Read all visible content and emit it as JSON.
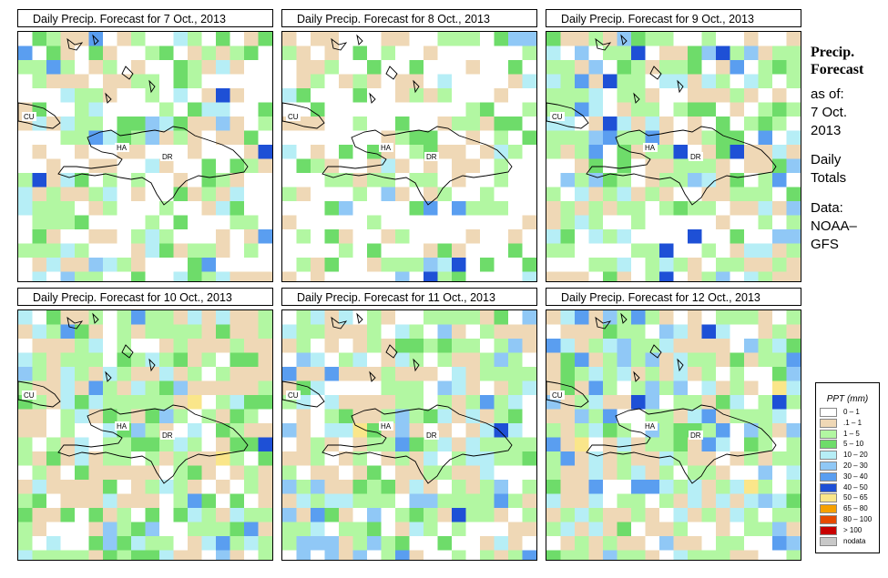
{
  "panels": [
    {
      "title": "Daily Precip. Forecast for  7 Oct., 2013",
      "seed": 7,
      "fill": 0.55,
      "wet": 0.1
    },
    {
      "title": "Daily Precip. Forecast for  8 Oct., 2013",
      "seed": 8,
      "fill": 0.5,
      "wet": 0.08
    },
    {
      "title": "Daily Precip. Forecast for  9 Oct., 2013",
      "seed": 9,
      "fill": 0.75,
      "wet": 0.18
    },
    {
      "title": "Daily Precip. Forecast for  10 Oct., 2013",
      "seed": 10,
      "fill": 0.82,
      "wet": 0.16
    },
    {
      "title": "Daily Precip. Forecast for  11 Oct., 2013",
      "seed": 11,
      "fill": 0.8,
      "wet": 0.2
    },
    {
      "title": "Daily Precip. Forecast for  12 Oct., 2013",
      "seed": 12,
      "fill": 0.85,
      "wet": 0.24
    }
  ],
  "country_labels": [
    "CU",
    "HA",
    "DR"
  ],
  "sidebar": {
    "title_line1": "Precip.",
    "title_line2": "Forecast",
    "as_of": "as of:",
    "date_line1": "7 Oct.",
    "date_line2": "2013",
    "totals_line1": "Daily",
    "totals_line2": "Totals",
    "data_line1": "Data:",
    "data_line2": "NOAA–",
    "data_line3": "GFS"
  },
  "legend": {
    "title": "PPT (mm)",
    "items": [
      {
        "label": "0 – 1",
        "color": "#ffffff"
      },
      {
        "label": ".1 – 1",
        "color": "#efd8b6"
      },
      {
        "label": "1 – 5",
        "color": "#b2f7a2"
      },
      {
        "label": "5 – 10",
        "color": "#6edc6a"
      },
      {
        "label": "10 – 20",
        "color": "#b6eef6"
      },
      {
        "label": "20 – 30",
        "color": "#90c8f6"
      },
      {
        "label": "30 – 40",
        "color": "#5a9ef0"
      },
      {
        "label": "40 – 50",
        "color": "#1e50d6"
      },
      {
        "label": "50 – 65",
        "color": "#fae68a"
      },
      {
        "label": "65 – 80",
        "color": "#f6a000"
      },
      {
        "label": "80 – 100",
        "color": "#e64a00"
      },
      {
        "label": "> 100",
        "color": "#c80000"
      },
      {
        "label": "nodata",
        "color": "#c8c8c8"
      }
    ]
  }
}
